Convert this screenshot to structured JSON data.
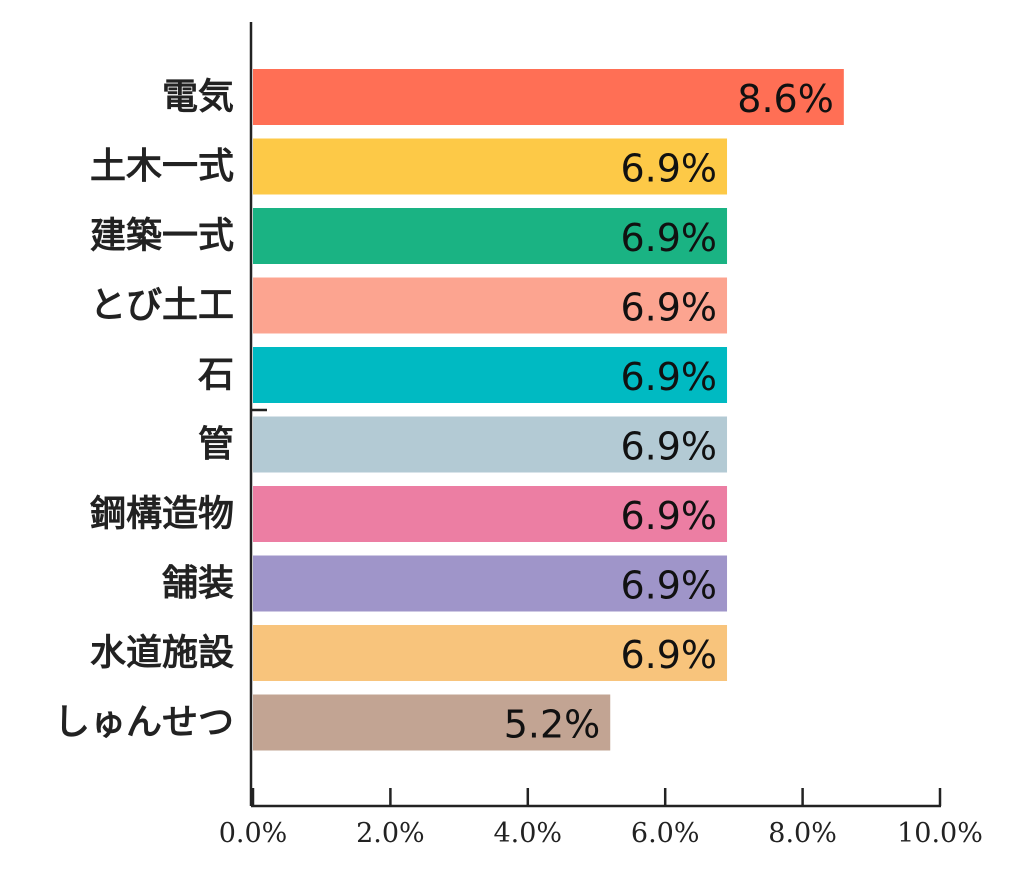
{
  "chart_data": {
    "type": "bar",
    "orientation": "horizontal",
    "title": "",
    "xlabel": "",
    "ylabel": "",
    "categories": [
      "電気",
      "土木一式",
      "建築一式",
      "とび土工",
      "石",
      "管",
      "鋼構造物",
      "舗装",
      "水道施設",
      "しゅんせつ"
    ],
    "values": [
      8.6,
      6.9,
      6.9,
      6.9,
      6.9,
      6.9,
      6.9,
      6.9,
      6.9,
      5.2
    ],
    "value_labels": [
      "8.6%",
      "6.9%",
      "6.9%",
      "6.9%",
      "6.9%",
      "6.9%",
      "6.9%",
      "6.9%",
      "6.9%",
      "5.2%"
    ],
    "colors": [
      "#ff6f55",
      "#fdc947",
      "#1ab383",
      "#fca490",
      "#00bac2",
      "#b3cad4",
      "#ec7ea3",
      "#9f95c9",
      "#f8c47c",
      "#c2a493"
    ],
    "xlim": [
      0,
      10
    ],
    "xticks": [
      0,
      2,
      4,
      6,
      8,
      10
    ],
    "xtick_labels": [
      "0.0%",
      "2.0%",
      "4.0%",
      "6.0%",
      "8.0%",
      "10.0%"
    ],
    "grid": false,
    "legend": "none"
  }
}
